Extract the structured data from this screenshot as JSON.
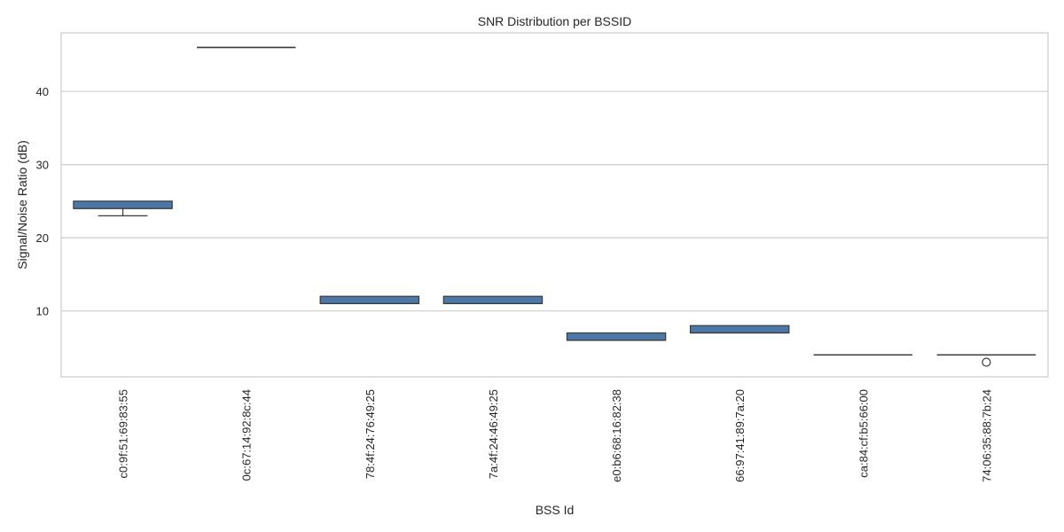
{
  "chart_data": {
    "type": "box",
    "title": "SNR Distribution per BSSID",
    "xlabel": "BSS Id",
    "ylabel": "Signal/Noise Ratio (dB)",
    "ylim": [
      1,
      48
    ],
    "yticks": [
      10,
      20,
      30,
      40
    ],
    "grid": "horizontal",
    "box_color": "#4c78a8",
    "line_color": "#3a3a3a",
    "categories": [
      "c0:9f:51:69:83:55",
      "0c:67:14:92:8c:44",
      "78:4f:24:76:49:25",
      "7a:4f:24:46:49:25",
      "e0:b6:68:16:82:38",
      "66:97:41:89:7a:20",
      "ca:84:cf:b5:66:00",
      "74:06:35:88:7b:24"
    ],
    "boxes": [
      {
        "whisker_low": 23,
        "q1": 24,
        "median": 24,
        "q3": 25,
        "whisker_high": 25,
        "outliers": []
      },
      {
        "whisker_low": 46,
        "q1": 46,
        "median": 46,
        "q3": 46,
        "whisker_high": 46,
        "outliers": []
      },
      {
        "whisker_low": 11,
        "q1": 11,
        "median": 11,
        "q3": 12,
        "whisker_high": 12,
        "outliers": []
      },
      {
        "whisker_low": 11,
        "q1": 11,
        "median": 11,
        "q3": 12,
        "whisker_high": 12,
        "outliers": []
      },
      {
        "whisker_low": 6,
        "q1": 6,
        "median": 6,
        "q3": 7,
        "whisker_high": 7,
        "outliers": []
      },
      {
        "whisker_low": 7,
        "q1": 7,
        "median": 7,
        "q3": 8,
        "whisker_high": 8,
        "outliers": []
      },
      {
        "whisker_low": 4,
        "q1": 4,
        "median": 4,
        "q3": 4,
        "whisker_high": 4,
        "outliers": []
      },
      {
        "whisker_low": 4,
        "q1": 4,
        "median": 4,
        "q3": 4,
        "whisker_high": 4,
        "outliers": [
          3
        ]
      }
    ]
  }
}
